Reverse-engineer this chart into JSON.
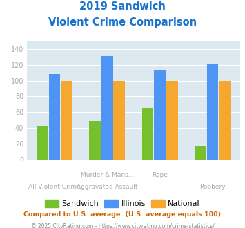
{
  "title_line1": "2019 Sandwich",
  "title_line2": "Violent Crime Comparison",
  "title_color": "#1874CD",
  "cat_labels_top": [
    "",
    "Murder & Mans...",
    "Rape",
    ""
  ],
  "cat_labels_bottom": [
    "All Violent Crime",
    "Aggravated Assault",
    "",
    "Robbery"
  ],
  "sandwich_values": [
    43,
    49,
    65,
    17
  ],
  "illinois_values": [
    108,
    131,
    114,
    121
  ],
  "national_values": [
    100,
    100,
    100,
    100
  ],
  "sandwich_color": "#76c02d",
  "illinois_color": "#4d94f5",
  "national_color": "#f5a830",
  "ylim": [
    0,
    150
  ],
  "yticks": [
    0,
    20,
    40,
    60,
    80,
    100,
    120,
    140
  ],
  "plot_bg_color": "#dce9f0",
  "fig_bg_color": "#ffffff",
  "legend_labels": [
    "Sandwich",
    "Illinois",
    "National"
  ],
  "footnote1": "Compared to U.S. average. (U.S. average equals 100)",
  "footnote2": "© 2025 CityRating.com - https://www.cityrating.com/crime-statistics/",
  "footnote1_color": "#cc6600",
  "footnote2_color": "#888888",
  "tick_color": "#aaaaaa",
  "label_color": "#aaaaaa"
}
